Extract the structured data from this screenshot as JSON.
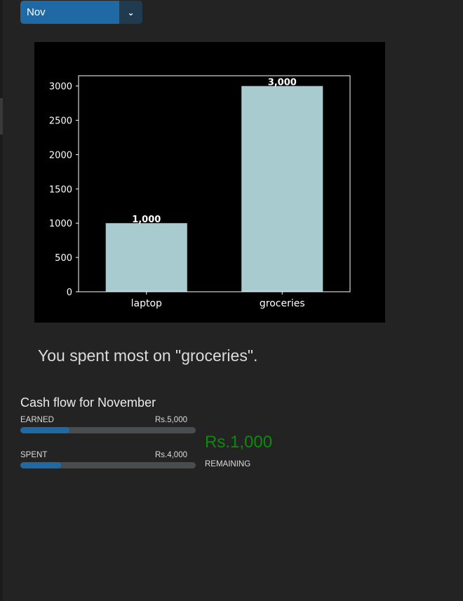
{
  "month_selector": {
    "value": "Nov",
    "arrow_icon": "chevron-down-icon"
  },
  "chart_data": {
    "type": "bar",
    "categories": [
      "laptop",
      "groceries"
    ],
    "values": [
      1000,
      3000
    ],
    "value_labels": [
      "1,000",
      "3,000"
    ],
    "title": "",
    "xlabel": "",
    "ylabel": "",
    "ylim": [
      0,
      3150
    ],
    "yticks": [
      0,
      500,
      1000,
      1500,
      2000,
      2500,
      3000
    ],
    "bar_color": "#a8cbcf",
    "grid": false
  },
  "summary": "You spent most on \"groceries\".",
  "cash_flow": {
    "title": "Cash flow for November",
    "earned": {
      "label": "EARNED",
      "amount": "Rs.5,000",
      "progress": 0.28
    },
    "spent": {
      "label": "SPENT",
      "amount": "Rs.4,000",
      "progress": 0.23
    },
    "remaining": {
      "amount": "Rs.1,000",
      "label": "REMAINING",
      "color": "#0d8a0d"
    }
  }
}
